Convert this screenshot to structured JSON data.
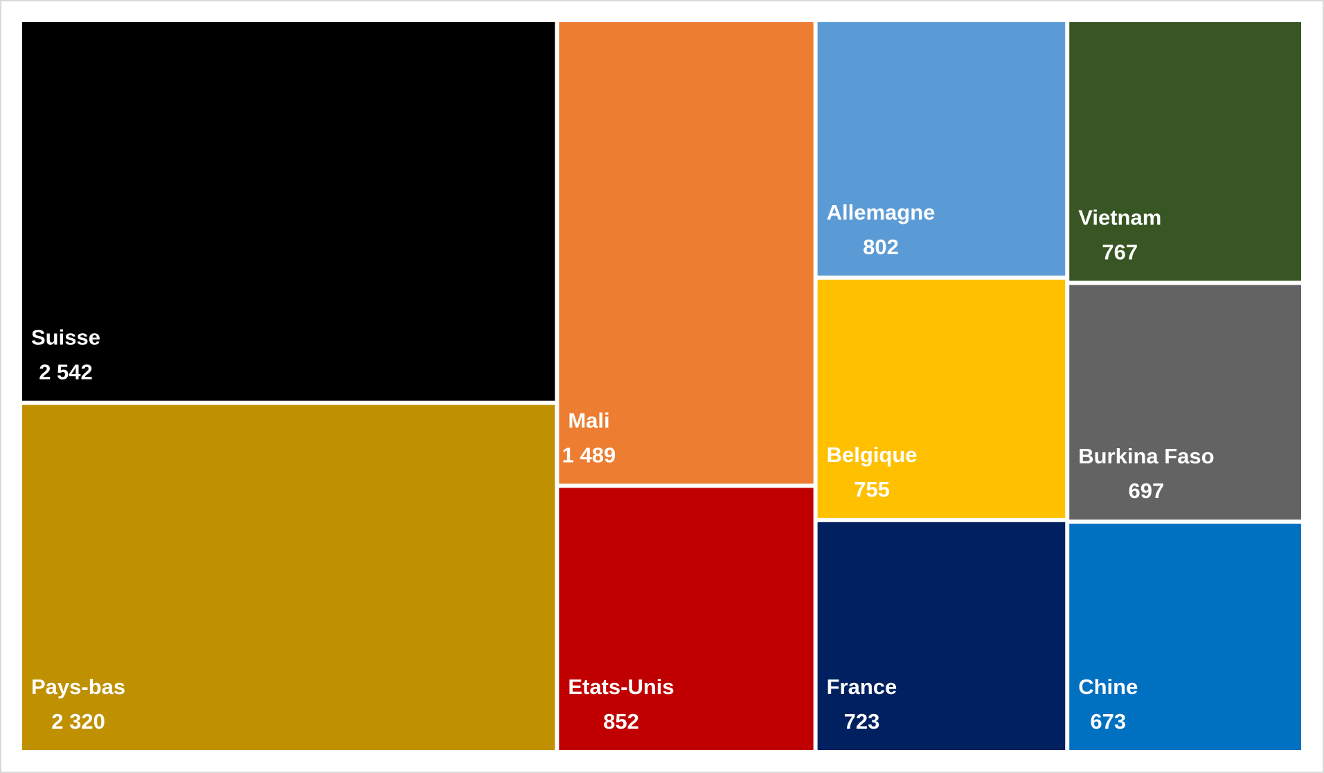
{
  "chart_data": {
    "type": "treemap",
    "categories": [
      "Suisse",
      "Pays-bas",
      "Mali",
      "Etats-Unis",
      "Allemagne",
      "Belgique",
      "France",
      "Vietnam",
      "Burkina Faso",
      "Chine"
    ],
    "values": [
      2542,
      2320,
      1489,
      852,
      802,
      755,
      723,
      767,
      697,
      673
    ],
    "value_labels": [
      "2 542",
      "2 320",
      "1 489",
      "852",
      "802",
      "755",
      "723",
      "767",
      "697",
      "673"
    ],
    "colors": [
      "#000000",
      "#bf9000",
      "#ed7d31",
      "#c00000",
      "#5b9bd5",
      "#ffc000",
      "#002060",
      "#375623",
      "#636363",
      "#0070c0"
    ]
  }
}
